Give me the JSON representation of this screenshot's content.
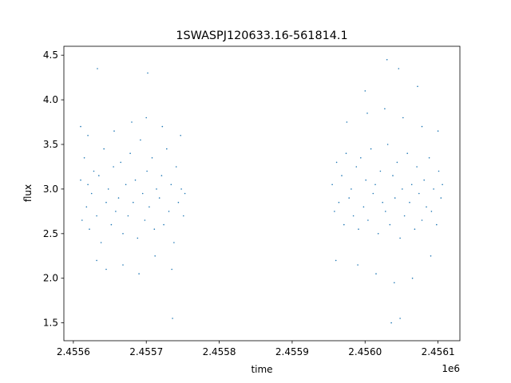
{
  "chart_data": {
    "type": "scatter",
    "title": "1SWASPJ120633.16-561814.1",
    "xlabel": "time",
    "ylabel": "flux",
    "x_offset_label": "1e6",
    "xlim": [
      2455587,
      2456130
    ],
    "ylim": [
      1.3,
      4.6
    ],
    "x_ticks": [
      2455600,
      2455700,
      2455800,
      2455900,
      2456000,
      2456100
    ],
    "x_tick_labels": [
      "2.4556",
      "2.4557",
      "2.4558",
      "2.4559",
      "2.4560",
      "2.4561"
    ],
    "y_ticks": [
      1.5,
      2.0,
      2.5,
      3.0,
      3.5,
      4.0,
      4.5
    ],
    "y_tick_labels": [
      "1.5",
      "2.0",
      "2.5",
      "3.0",
      "3.5",
      "4.0",
      "4.5"
    ],
    "grid": false,
    "marker_color": "#1f77b4",
    "series": [
      {
        "x": [
          2455610,
          2455612,
          2455615,
          2455618,
          2455620,
          2455622,
          2455625,
          2455628,
          2455632,
          2455635,
          2455638,
          2455642,
          2455645,
          2455648,
          2455652,
          2455655,
          2455658,
          2455662,
          2455665,
          2455668,
          2455672,
          2455675,
          2455678,
          2455682,
          2455685,
          2455688,
          2455692,
          2455695,
          2455698,
          2455701,
          2455704,
          2455708,
          2455711,
          2455714,
          2455718,
          2455721,
          2455724,
          2455728,
          2455731,
          2455734,
          2455738,
          2455741,
          2455744,
          2455748,
          2455751,
          2455753,
          2455610,
          2455620,
          2455632,
          2455645,
          2455656,
          2455668,
          2455680,
          2455690,
          2455700,
          2455712,
          2455722,
          2455735,
          2455747,
          2455633,
          2455702,
          2455736,
          2455955,
          2455958,
          2455961,
          2455964,
          2455968,
          2455971,
          2455974,
          2455978,
          2455981,
          2455984,
          2455988,
          2455991,
          2455994,
          2455998,
          2456001,
          2456004,
          2456008,
          2456011,
          2456014,
          2456018,
          2456021,
          2456024,
          2456028,
          2456031,
          2456034,
          2456038,
          2456041,
          2456044,
          2456048,
          2456051,
          2456054,
          2456058,
          2456061,
          2456064,
          2456068,
          2456071,
          2456074,
          2456078,
          2456081,
          2456084,
          2456088,
          2456091,
          2456094,
          2456098,
          2456101,
          2456104,
          2456106,
          2455960,
          2455975,
          2455990,
          2456003,
          2456015,
          2456027,
          2456040,
          2456052,
          2456065,
          2456078,
          2456090,
          2456100,
          2456030,
          2456036,
          2456046,
          2456000,
          2456048,
          2456072
        ],
        "y": [
          3.1,
          2.65,
          3.35,
          2.8,
          3.05,
          2.55,
          2.95,
          3.2,
          2.7,
          3.15,
          2.4,
          3.45,
          2.85,
          3.0,
          2.6,
          3.25,
          2.75,
          2.9,
          3.3,
          2.5,
          3.05,
          2.7,
          3.4,
          2.85,
          3.1,
          2.45,
          3.55,
          2.95,
          2.65,
          3.2,
          2.8,
          3.35,
          2.55,
          3.0,
          2.9,
          3.15,
          2.6,
          3.45,
          2.75,
          3.05,
          2.4,
          3.25,
          2.85,
          3.0,
          2.7,
          2.95,
          3.7,
          3.6,
          2.2,
          2.1,
          3.65,
          2.15,
          3.75,
          2.05,
          3.8,
          2.25,
          3.7,
          2.1,
          3.6,
          4.35,
          4.3,
          1.55,
          3.05,
          2.75,
          3.3,
          2.85,
          3.15,
          2.6,
          3.4,
          2.9,
          3.0,
          2.7,
          3.25,
          2.55,
          3.35,
          2.8,
          3.1,
          2.65,
          3.45,
          2.95,
          3.05,
          2.5,
          3.2,
          2.85,
          2.75,
          3.5,
          2.6,
          3.15,
          2.9,
          3.3,
          2.45,
          3.0,
          2.7,
          3.4,
          2.85,
          3.05,
          2.55,
          3.25,
          2.95,
          2.65,
          3.1,
          2.8,
          3.35,
          2.75,
          3.0,
          2.6,
          3.2,
          2.9,
          3.05,
          2.2,
          3.75,
          2.15,
          3.85,
          2.05,
          3.9,
          1.95,
          3.8,
          2.0,
          3.7,
          2.25,
          3.65,
          4.45,
          1.5,
          4.35,
          4.1,
          1.55,
          4.15
        ]
      }
    ]
  }
}
